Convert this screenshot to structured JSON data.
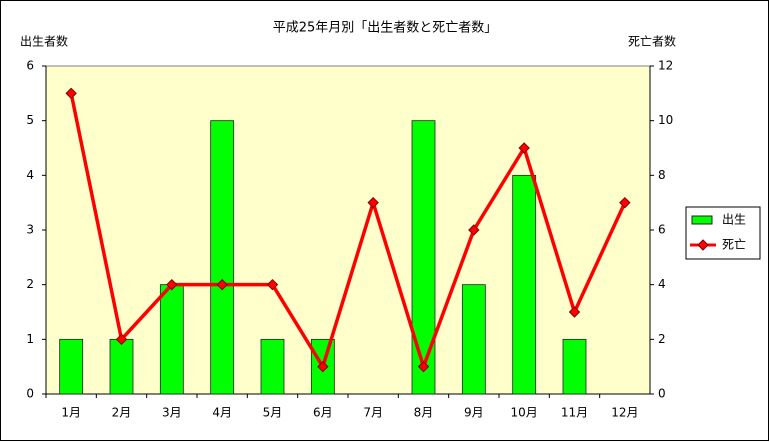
{
  "chart_data": {
    "type": "bar-line",
    "title": "平成25年月別「出生者数と死亡者数」",
    "ylabel": "出生者数",
    "y2label": "死亡者数",
    "categories": [
      "1月",
      "2月",
      "3月",
      "4月",
      "5月",
      "6月",
      "7月",
      "8月",
      "9月",
      "10月",
      "11月",
      "12月"
    ],
    "series": [
      {
        "name": "出生",
        "type": "bar",
        "color": "#00ff00",
        "values": [
          1,
          1,
          2,
          5,
          1,
          1,
          0,
          5,
          2,
          4,
          1,
          0
        ]
      },
      {
        "name": "死亡",
        "type": "line",
        "axis": "y2",
        "color": "#ff0000",
        "values": [
          11,
          2,
          4,
          4,
          4,
          1,
          7,
          1,
          6,
          9,
          3,
          7
        ]
      }
    ],
    "ylim": [
      0,
      6
    ],
    "yticks": [
      0,
      1,
      2,
      3,
      4,
      5,
      6
    ],
    "y2lim": [
      0,
      12
    ],
    "y2ticks": [
      0,
      2,
      4,
      6,
      8,
      10,
      12
    ],
    "grid": false,
    "legend": "right"
  }
}
